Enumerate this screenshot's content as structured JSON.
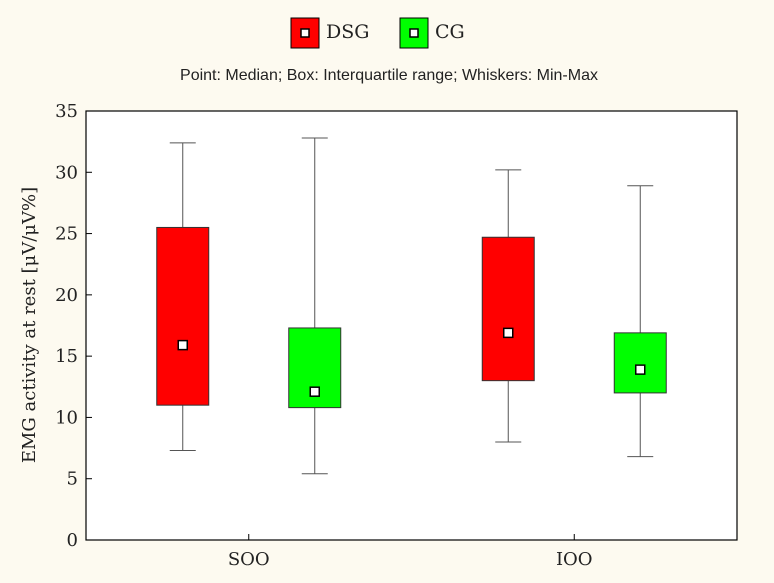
{
  "chart_data": {
    "type": "box",
    "subtitle": "Point: Median; Box: Interquartile range; Whiskers: Min-Max",
    "ylabel": "EMG activity at rest [μV/μV%]",
    "xlabel": "",
    "ylim": [
      0,
      35
    ],
    "yticks": [
      0,
      5,
      10,
      15,
      20,
      25,
      30,
      35
    ],
    "categories": [
      "SOO",
      "IOO"
    ],
    "legend_position": "top-center",
    "grid": false,
    "series": [
      {
        "name": "DSG",
        "color": "#ff0000",
        "boxes": [
          {
            "category": "SOO",
            "min": 7.3,
            "q1": 11.0,
            "median": 15.9,
            "q3": 25.5,
            "max": 32.4
          },
          {
            "category": "IOO",
            "min": 8.0,
            "q1": 13.0,
            "median": 16.9,
            "q3": 24.7,
            "max": 30.2
          }
        ]
      },
      {
        "name": "CG",
        "color": "#00ff00",
        "boxes": [
          {
            "category": "SOO",
            "min": 5.4,
            "q1": 10.8,
            "median": 12.1,
            "q3": 17.3,
            "max": 32.8
          },
          {
            "category": "IOO",
            "min": 6.8,
            "q1": 12.0,
            "median": 13.9,
            "q3": 16.9,
            "max": 28.9
          }
        ]
      }
    ]
  }
}
